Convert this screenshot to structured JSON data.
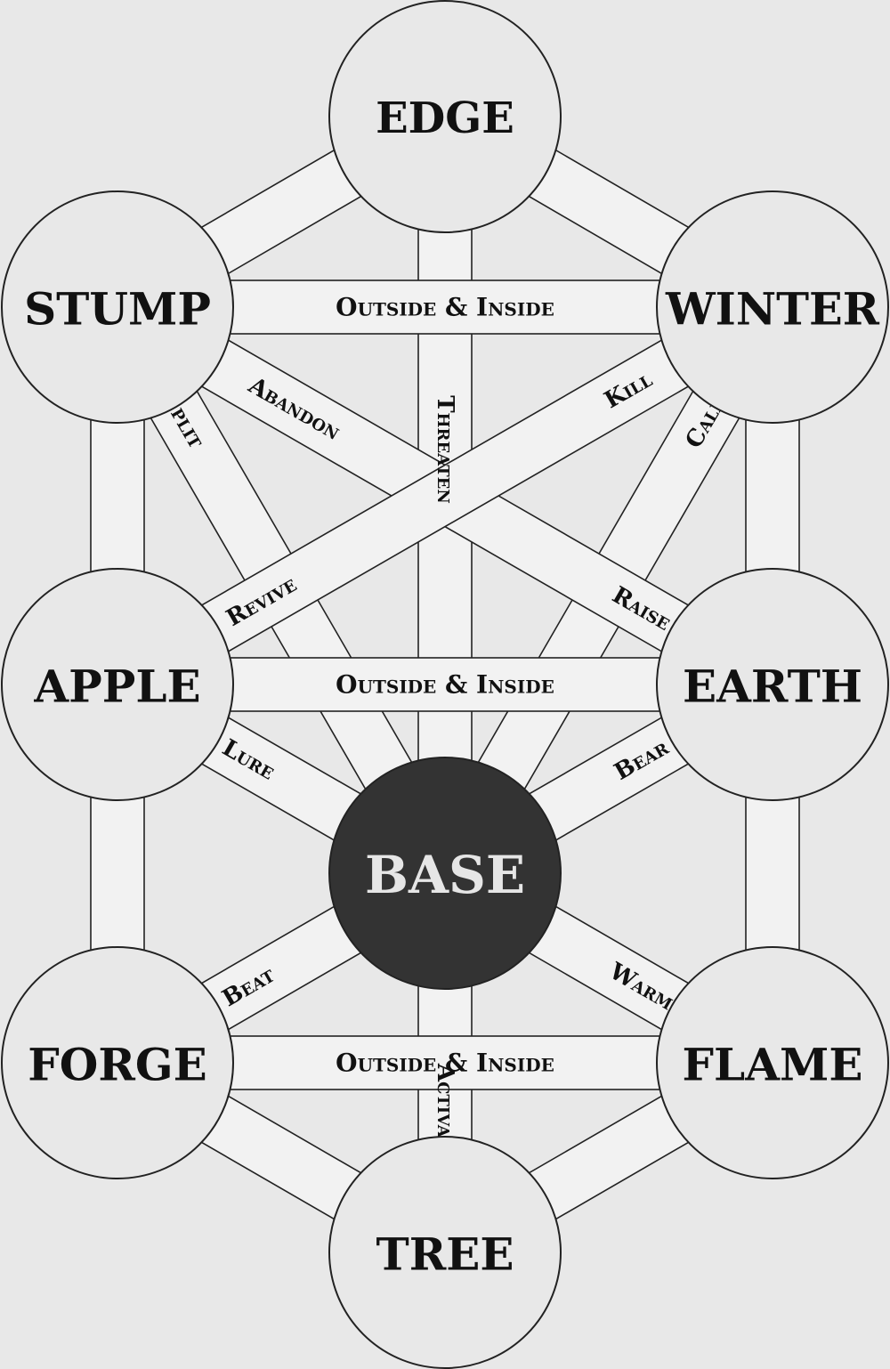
{
  "colors": {
    "background": "#e8e8e8",
    "node_fill": "#e8e8e8",
    "base_fill": "#333333",
    "band_fill": "#f2f2f2",
    "stroke": "#222222",
    "node_text": "#111111",
    "base_text": "#e6e6e6"
  },
  "nodes": {
    "edge": "EDGE",
    "stump": "STUMP",
    "winter": "WINTER",
    "apple": "APPLE",
    "earth": "EARTH",
    "base": "BASE",
    "forge": "FORGE",
    "flame": "FLAME",
    "tree": "TREE"
  },
  "paths": {
    "stump_winter": "Outside & Inside",
    "apple_earth": "Outside & Inside",
    "forge_flame": "Outside & Inside",
    "stump_earth": "Abandon",
    "stump_base": "Split",
    "edge_base": "Threaten",
    "winter_apple": "Kill",
    "winter_apple_2": "Revive",
    "winter_base": "Calm",
    "stump_earth_2": "Raise",
    "apple_base": "Lure",
    "earth_base": "Bear",
    "forge_base": "Beat",
    "flame_base": "Warm",
    "tree_base": "Activate"
  }
}
